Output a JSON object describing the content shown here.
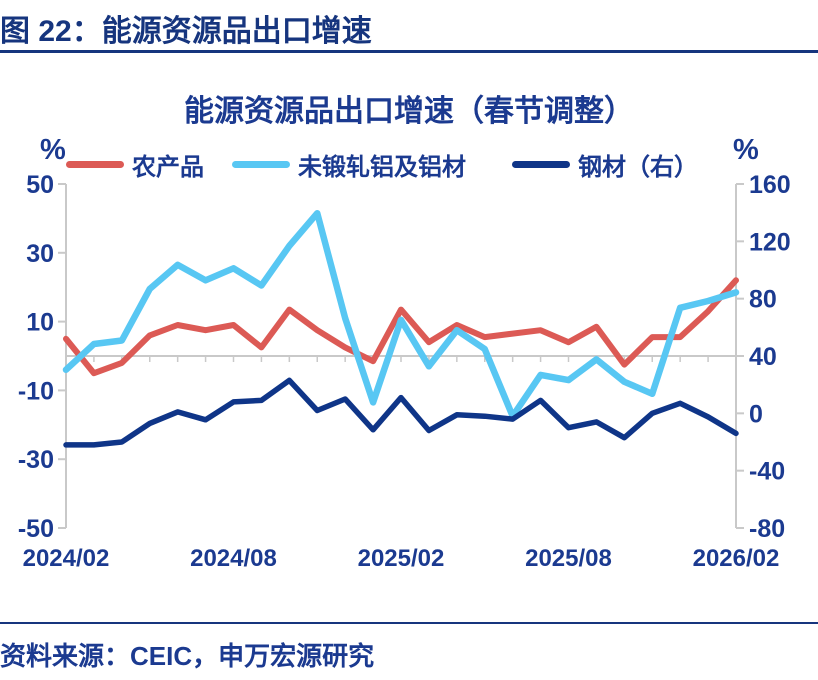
{
  "page": {
    "header_title": "图 22：能源资源品出口增速",
    "source_text": "资料来源：CEIC，申万宏源研究"
  },
  "chart": {
    "title": "能源资源品出口增速（春节调整）",
    "left_unit": "%",
    "right_unit": "%",
    "legend": [
      {
        "label": "农产品",
        "color": "#dc5a55"
      },
      {
        "label": "未锻轧铝及铝材",
        "color": "#58c7f3"
      },
      {
        "label": "钢材（右）",
        "color": "#0f3588"
      }
    ],
    "colors": {
      "text_navy": "#1b3a90",
      "header_navy": "#16357e",
      "axis_gray": "#c9c9c9",
      "red_line": "#dc5a55",
      "cyan_line": "#58c7f3",
      "navy_line": "#0f3588"
    }
  },
  "chart_data": {
    "type": "line",
    "title": "能源资源品出口增速（春节调整）",
    "x": [
      "2024/02",
      "2024/03",
      "2024/04",
      "2024/05",
      "2024/06",
      "2024/07",
      "2024/08",
      "2024/09",
      "2024/10",
      "2024/11",
      "2024/12",
      "2025/01",
      "2025/02",
      "2025/03",
      "2025/04",
      "2025/05",
      "2025/06",
      "2025/07",
      "2025/08",
      "2025/09",
      "2025/10",
      "2025/11",
      "2025/12",
      "2026/01",
      "2026/02"
    ],
    "x_shown_ticks": [
      {
        "index": 0,
        "label": "2024/02"
      },
      {
        "index": 6,
        "label": "2024/08"
      },
      {
        "index": 12,
        "label": "2025/02"
      },
      {
        "index": 18,
        "label": "2025/08"
      },
      {
        "index": 24,
        "label": "2026/02"
      }
    ],
    "series": [
      {
        "name": "农产品",
        "axis": "left",
        "color": "#dc5a55",
        "width": 6,
        "values": [
          5,
          -5,
          -2,
          6,
          9,
          7.5,
          9,
          2.5,
          13.5,
          7.5,
          2.5,
          -1.5,
          13.5,
          4,
          9,
          5.5,
          6.5,
          7.5,
          4,
          8.5,
          -2.5,
          5.5,
          5.5,
          13,
          22
        ]
      },
      {
        "name": "未锻轧铝及铝材",
        "axis": "left",
        "color": "#58c7f3",
        "width": 6.5,
        "values": [
          -4,
          3.5,
          4.5,
          19.5,
          26.5,
          22,
          25.5,
          20.5,
          32,
          41.5,
          11,
          -13.5,
          10.5,
          -3,
          7.5,
          2,
          -17.5,
          -5.5,
          -7,
          -1,
          -7.5,
          -11,
          14,
          16,
          18.5
        ]
      },
      {
        "name": "钢材（右）",
        "axis": "right",
        "color": "#0f3588",
        "width": 5.5,
        "values": [
          -22,
          -22,
          -20,
          -7,
          1,
          -4.5,
          8,
          9,
          23,
          2,
          10,
          -11.5,
          11,
          -12,
          -1,
          -2,
          -4,
          9,
          -10,
          -6,
          -17,
          0,
          7,
          -2.5,
          -14
        ]
      }
    ],
    "left_axis": {
      "unit": "%",
      "min": -50,
      "max": 50,
      "ticks": [
        50,
        30,
        10,
        -10,
        -30,
        -50
      ]
    },
    "right_axis": {
      "unit": "%",
      "min": -80,
      "max": 160,
      "ticks": [
        160,
        120,
        80,
        40,
        0,
        -40,
        -80
      ]
    },
    "grid": "horizontal zero line only, monthly tick marks below zero line",
    "legend_position": "top"
  }
}
